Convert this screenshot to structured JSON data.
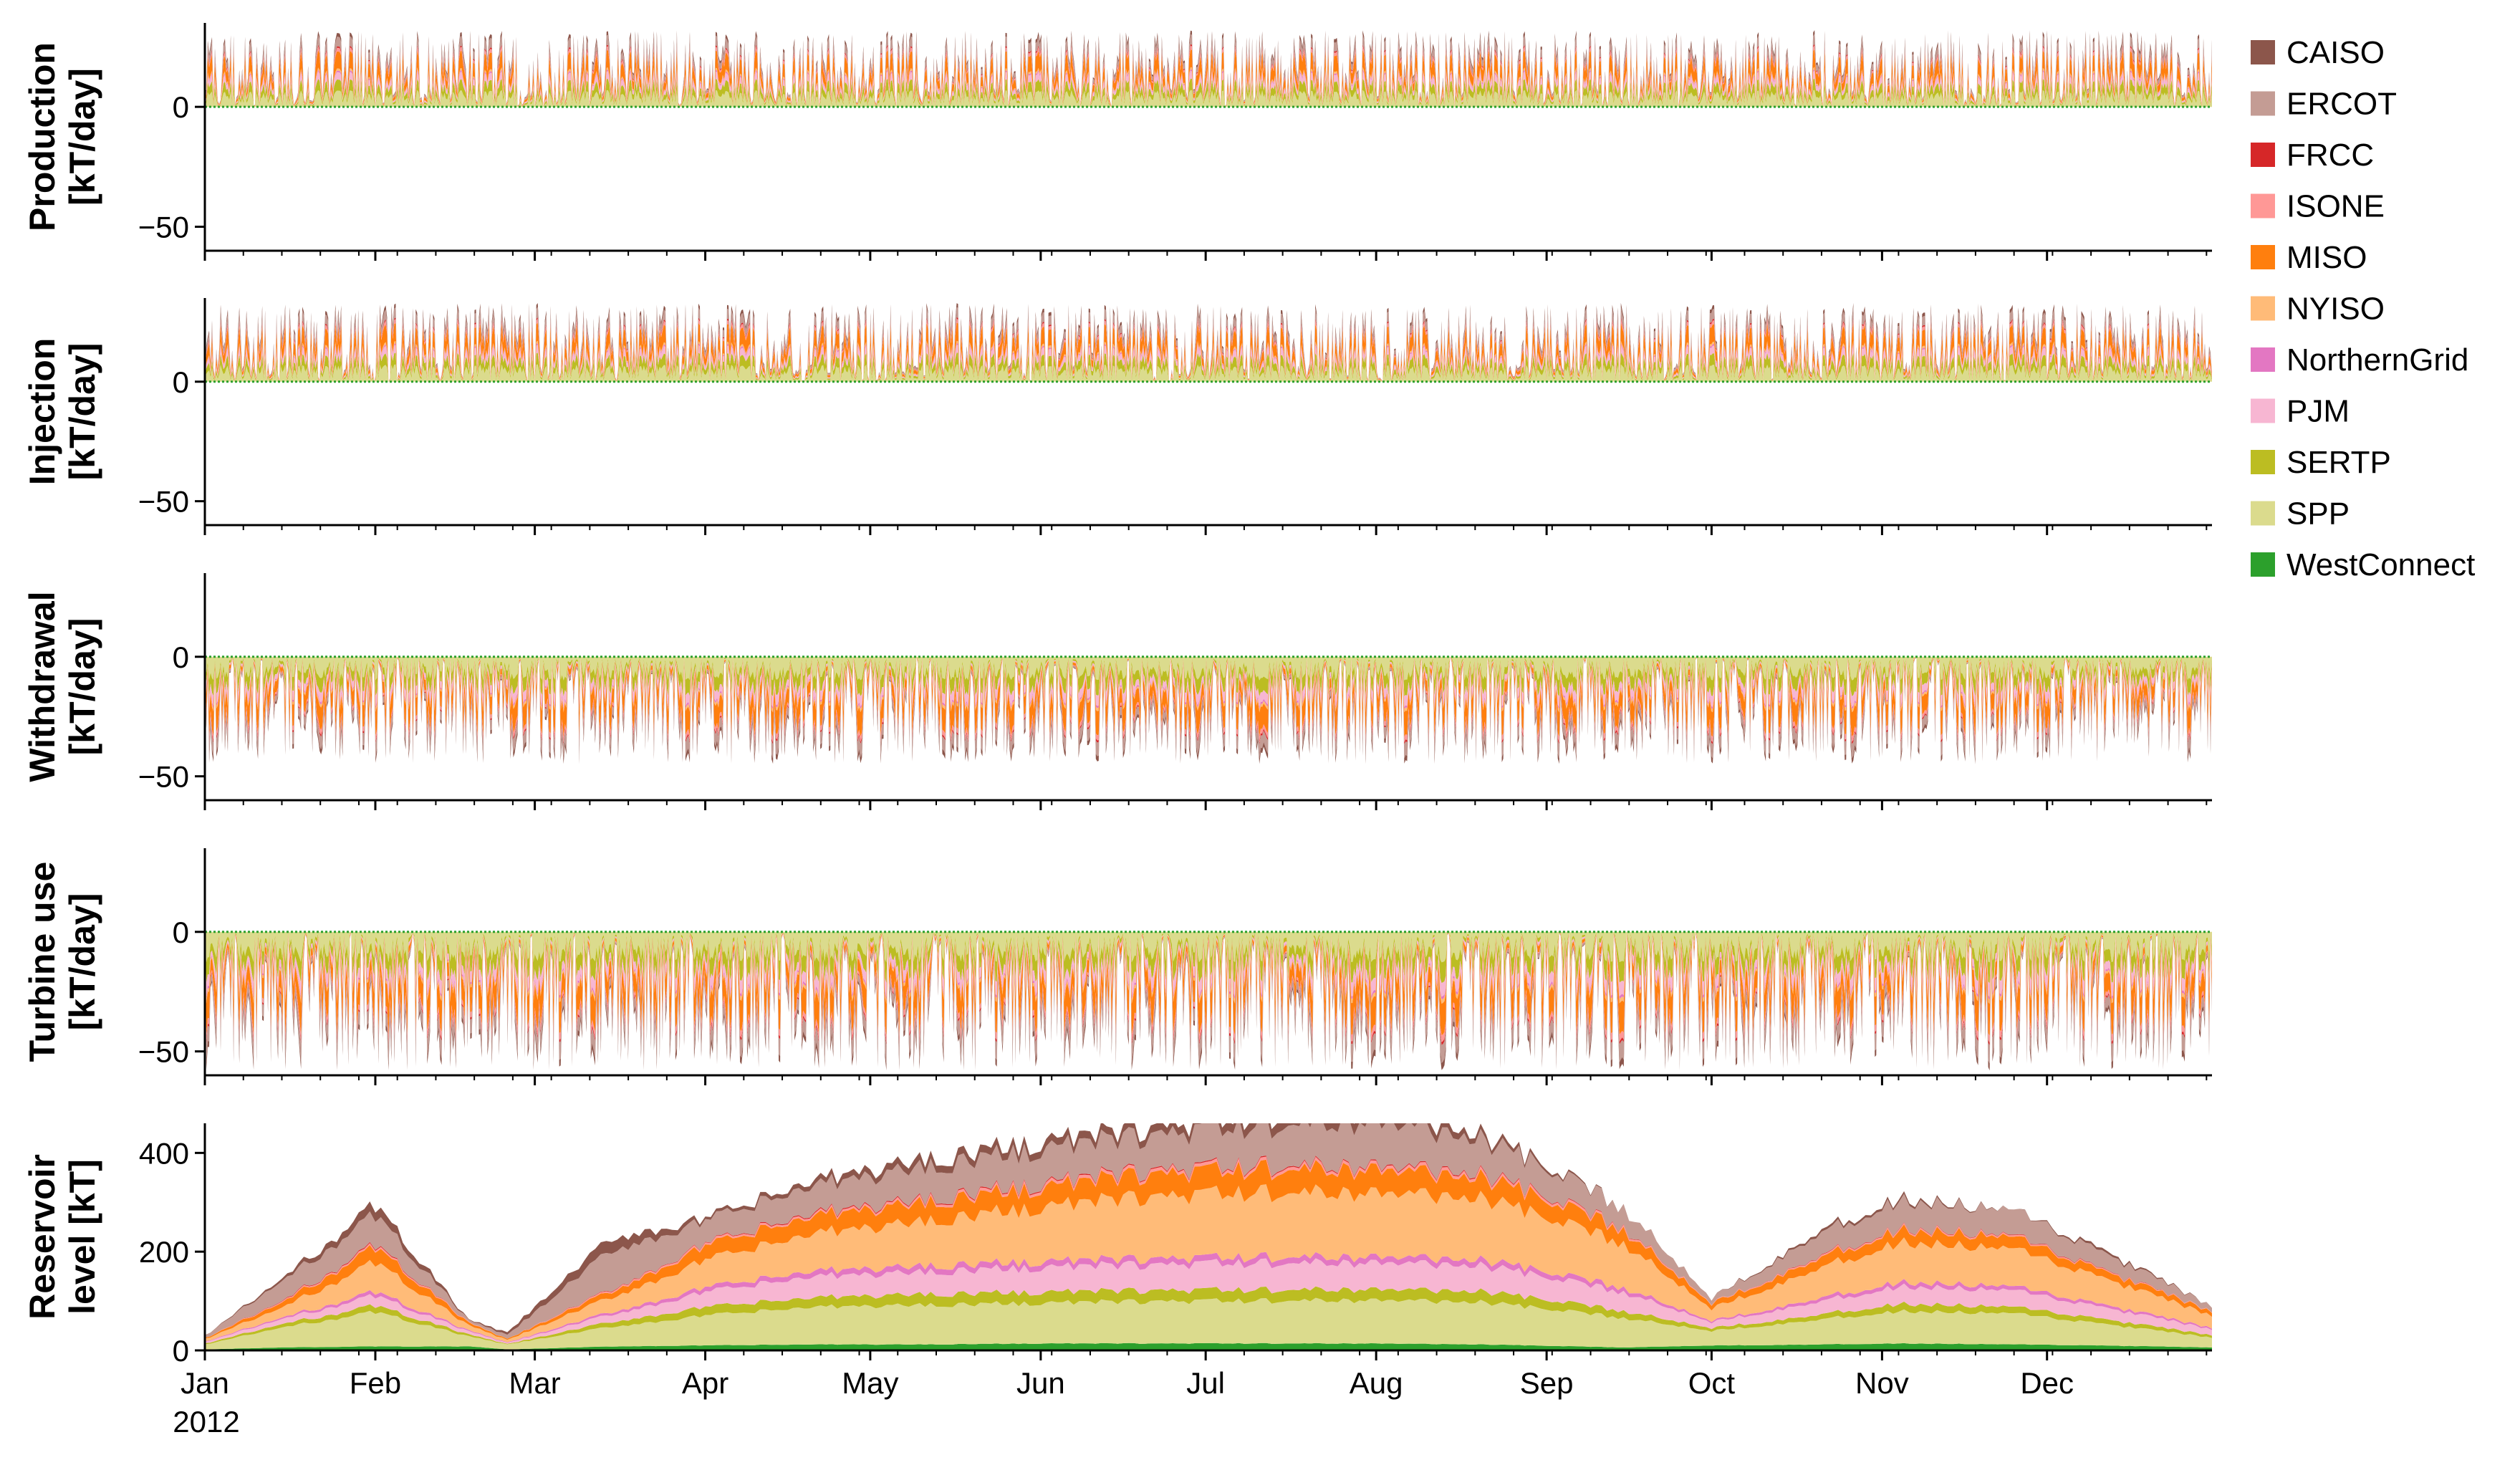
{
  "chart_data": {
    "type": "area",
    "x_axis": {
      "range": [
        "2012-01-01",
        "2012-12-31"
      ],
      "year_label": "2012",
      "month_ticks": [
        {
          "label": "Jan",
          "date": "2012-01-01"
        },
        {
          "label": "Feb",
          "date": "2012-02-01"
        },
        {
          "label": "Mar",
          "date": "2012-03-01"
        },
        {
          "label": "Apr",
          "date": "2012-04-01"
        },
        {
          "label": "May",
          "date": "2012-05-01"
        },
        {
          "label": "Jun",
          "date": "2012-06-01"
        },
        {
          "label": "Jul",
          "date": "2012-07-01"
        },
        {
          "label": "Aug",
          "date": "2012-08-01"
        },
        {
          "label": "Sep",
          "date": "2012-09-01"
        },
        {
          "label": "Oct",
          "date": "2012-10-01"
        },
        {
          "label": "Nov",
          "date": "2012-11-01"
        },
        {
          "label": "Dec",
          "date": "2012-12-01"
        }
      ]
    },
    "legend": {
      "placement": "right",
      "entries": [
        {
          "name": "CAISO",
          "color": "#8c564b"
        },
        {
          "name": "ERCOT",
          "color": "#c49c94"
        },
        {
          "name": "FRCC",
          "color": "#d62728"
        },
        {
          "name": "ISONE",
          "color": "#ff9896"
        },
        {
          "name": "MISO",
          "color": "#ff7f0e"
        },
        {
          "name": "NYISO",
          "color": "#ffbb78"
        },
        {
          "name": "NorthernGrid",
          "color": "#e377c2"
        },
        {
          "name": "PJM",
          "color": "#f7b6d2"
        },
        {
          "name": "SERTP",
          "color": "#bcbd22"
        },
        {
          "name": "SPP",
          "color": "#dbdb8d"
        },
        {
          "name": "WestConnect",
          "color": "#2ca02c"
        }
      ]
    },
    "panels": [
      {
        "id": "production",
        "ylabel": [
          "Production",
          "[kT/day]"
        ],
        "ylim": [
          -60,
          35
        ],
        "yticks": [
          {
            "value": 0,
            "label": "0"
          },
          {
            "value": -50,
            "label": "−50"
          }
        ],
        "sign": 1,
        "style": "spiky",
        "approx_peak": 32,
        "series_shares": [
          0.0,
          0.22,
          0.15,
          0.1,
          0.02,
          0.03,
          0.23,
          0.05,
          0.02,
          0.13,
          0.05
        ]
      },
      {
        "id": "injection",
        "ylabel": [
          "Injection",
          "[kT/day]"
        ],
        "ylim": [
          -60,
          35
        ],
        "yticks": [
          {
            "value": 0,
            "label": "0"
          },
          {
            "value": -50,
            "label": "−50"
          }
        ],
        "sign": 1,
        "style": "spiky",
        "approx_peak": 33,
        "series_shares": [
          0.0,
          0.22,
          0.15,
          0.1,
          0.02,
          0.03,
          0.23,
          0.05,
          0.02,
          0.13,
          0.05
        ]
      },
      {
        "id": "withdrawal",
        "ylabel": [
          "Withdrawal",
          "[kT/day]"
        ],
        "ylim": [
          -60,
          35
        ],
        "yticks": [
          {
            "value": 0,
            "label": "0"
          },
          {
            "value": -50,
            "label": "−50"
          }
        ],
        "sign": -1,
        "style": "spiky",
        "approx_peak": 45,
        "series_shares": [
          0.0,
          0.22,
          0.15,
          0.1,
          0.02,
          0.03,
          0.23,
          0.05,
          0.02,
          0.13,
          0.05
        ]
      },
      {
        "id": "turbine",
        "ylabel": [
          "Turbine use",
          "[kT/day]"
        ],
        "ylim": [
          -60,
          35
        ],
        "yticks": [
          {
            "value": 0,
            "label": "0"
          },
          {
            "value": -50,
            "label": "−50"
          }
        ],
        "sign": -1,
        "style": "spiky",
        "approx_peak": 58,
        "series_shares": [
          0.0,
          0.22,
          0.15,
          0.1,
          0.02,
          0.03,
          0.23,
          0.05,
          0.02,
          0.13,
          0.05
        ]
      },
      {
        "id": "reservoir",
        "ylabel": [
          "Reservoir",
          "level [kT]"
        ],
        "ylim": [
          0,
          460
        ],
        "yticks": [
          {
            "value": 0,
            "label": "0"
          },
          {
            "value": 200,
            "label": "200"
          },
          {
            "value": 400,
            "label": "400"
          }
        ],
        "sign": 1,
        "style": "smooth",
        "series": [
          {
            "name": "WestConnect",
            "values": [
              2,
              6,
              8,
              8,
              2,
              8,
              10,
              12,
              12,
              14,
              14,
              14,
              14,
              12,
              6,
              10,
              12,
              14,
              12,
              10,
              6
            ]
          },
          {
            "name": "SPP",
            "values": [
              10,
              40,
              70,
              20,
              10,
              40,
              60,
              75,
              80,
              82,
              85,
              86,
              88,
              86,
              60,
              30,
              50,
              65,
              62,
              45,
              20
            ]
          },
          {
            "name": "SERTP",
            "values": [
              2,
              7,
              13,
              4,
              1,
              10,
              17,
              19,
              22,
              22,
              22,
              22,
              22,
              22,
              14,
              6,
              10,
              15,
              13,
              10,
              5
            ]
          },
          {
            "name": "PJM",
            "values": [
              3,
              10,
              20,
              6,
              2,
              15,
              30,
              42,
              45,
              50,
              52,
              54,
              54,
              52,
              38,
              12,
              26,
              35,
              33,
              24,
              12
            ]
          },
          {
            "name": "NorthernGrid",
            "values": [
              1,
              3,
              8,
              2,
              1,
              5,
              9,
              11,
              12,
              12,
              12,
              12,
              12,
              12,
              9,
              3,
              7,
              9,
              8,
              6,
              3
            ]
          },
          {
            "name": "NYISO",
            "values": [
              5,
              20,
              60,
              10,
              5,
              30,
              55,
              75,
              90,
              110,
              125,
              130,
              130,
              125,
              90,
              25,
              60,
              80,
              75,
              55,
              25
            ]
          },
          {
            "name": "MISO",
            "values": [
              2,
              10,
              30,
              5,
              2,
              12,
              28,
              35,
              38,
              40,
              45,
              47,
              47,
              42,
              28,
              10,
              20,
              25,
              23,
              15,
              8
            ]
          },
          {
            "name": "ISONE",
            "values": [
              0,
              2,
              4,
              1,
              0,
              3,
              4,
              4,
              5,
              6,
              6,
              6,
              6,
              6,
              4,
              1,
              3,
              3,
              3,
              2,
              1
            ]
          },
          {
            "name": "FRCC",
            "values": [
              0,
              1,
              2,
              0,
              0,
              1,
              1,
              2,
              2,
              2,
              2,
              2,
              2,
              2,
              1,
              0,
              1,
              1,
              1,
              1,
              0
            ]
          },
          {
            "name": "ERCOT",
            "values": [
              5,
              40,
              60,
              4,
              8,
              80,
              45,
              55,
              65,
              70,
              70,
              80,
              90,
              70,
              40,
              10,
              45,
              55,
              50,
              35,
              10
            ]
          },
          {
            "name": "CAISO",
            "values": [
              0,
              5,
              20,
              1,
              5,
              25,
              5,
              10,
              15,
              15,
              15,
              20,
              25,
              10,
              0,
              0,
              5,
              5,
              0,
              5,
              0
            ]
          }
        ],
        "dates": [
          "2012-01-01",
          "2012-01-15",
          "2012-02-01",
          "2012-02-18",
          "2012-02-25",
          "2012-03-15",
          "2012-04-01",
          "2012-04-20",
          "2012-05-10",
          "2012-06-01",
          "2012-06-20",
          "2012-07-10",
          "2012-08-01",
          "2012-08-20",
          "2012-09-15",
          "2012-10-01",
          "2012-10-20",
          "2012-11-05",
          "2012-11-25",
          "2012-12-10",
          "2012-12-31"
        ]
      }
    ]
  }
}
